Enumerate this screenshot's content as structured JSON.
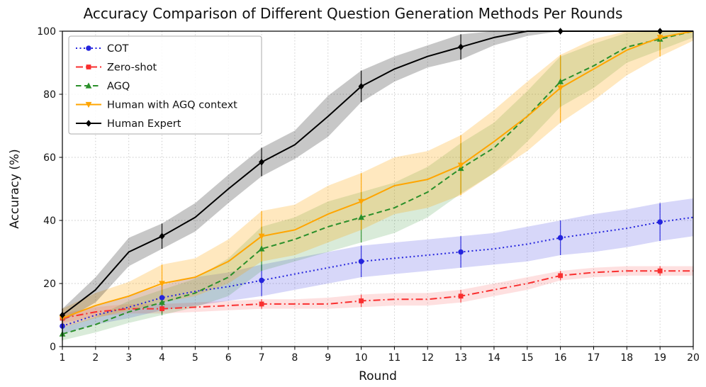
{
  "chart_data": {
    "type": "line",
    "title": "Accuracy Comparison of Different Question Generation Methods Per Rounds",
    "xlabel": "Round",
    "ylabel": "Accuracy (%)",
    "x": [
      1,
      2,
      3,
      4,
      5,
      6,
      7,
      8,
      9,
      10,
      11,
      12,
      13,
      14,
      15,
      16,
      17,
      18,
      19,
      20
    ],
    "xlim": [
      1,
      20
    ],
    "ylim": [
      0,
      100
    ],
    "yticks": [
      0,
      20,
      40,
      60,
      80,
      100
    ],
    "grid": true,
    "legend_position": "upper-left",
    "marker_every": 3,
    "series": [
      {
        "name": "COT",
        "color": "#2424dd",
        "band_opacity": 0.18,
        "line_style": "dotted",
        "marker": "circle",
        "values": [
          6.5,
          10,
          12.5,
          15.5,
          17.5,
          19,
          21,
          23,
          25,
          27,
          28,
          29,
          30,
          31,
          32.5,
          34.5,
          36,
          37.5,
          39.5,
          41
        ],
        "lower": [
          4,
          7,
          9,
          11.5,
          13,
          14.5,
          16,
          18,
          20,
          22,
          23,
          24,
          25,
          26,
          27,
          29,
          30,
          31.5,
          33.5,
          35
        ],
        "upper": [
          9,
          13,
          16,
          19.5,
          22,
          23.5,
          26,
          28,
          30,
          32,
          33,
          34,
          35,
          36,
          38,
          40,
          42,
          43.5,
          45.5,
          47
        ]
      },
      {
        "name": "Zero-shot",
        "color": "#f92f2f",
        "band_opacity": 0.15,
        "line_style": "dashdot",
        "marker": "square",
        "values": [
          9,
          11,
          12,
          12,
          12.5,
          13,
          13.5,
          13.5,
          13.5,
          14.5,
          15,
          15,
          16,
          18,
          20,
          22.5,
          23.5,
          24,
          24,
          24
        ],
        "lower": [
          7.5,
          9.5,
          10.5,
          10.5,
          11,
          11.5,
          12,
          12,
          12,
          12.5,
          13,
          13,
          14,
          16,
          18,
          21,
          22,
          22.5,
          22.5,
          22.5
        ],
        "upper": [
          10.5,
          12.5,
          13.5,
          13.5,
          14,
          14.5,
          15,
          15,
          15.5,
          16.5,
          17,
          17,
          18,
          20,
          22,
          24,
          25,
          25.5,
          25.5,
          25.5
        ]
      },
      {
        "name": "AGQ",
        "color": "#2a8f2a",
        "band_opacity": 0.18,
        "line_style": "dashed",
        "marker": "triangle-up",
        "values": [
          4,
          7,
          11,
          14,
          17,
          22,
          31,
          34,
          38,
          41,
          44,
          49,
          56.5,
          63,
          73,
          84,
          89,
          95,
          97.5,
          100
        ],
        "lower": [
          2,
          4.5,
          7.5,
          10,
          12.5,
          16,
          24,
          27,
          30,
          33,
          36,
          41,
          48.5,
          55,
          65,
          76,
          82,
          90,
          94,
          98
        ],
        "upper": [
          6,
          9.5,
          14.5,
          18,
          21.5,
          28,
          38,
          41,
          46,
          49,
          52,
          57,
          64.5,
          71,
          81,
          92,
          96,
          99.5,
          100,
          100
        ]
      },
      {
        "name": "Human with AGQ context",
        "color": "#ffa500",
        "band_opacity": 0.25,
        "line_style": "solid",
        "marker": "triangle-down",
        "values": [
          9,
          13,
          16,
          20,
          22,
          27,
          35,
          37,
          42,
          46,
          51,
          53,
          57.5,
          65,
          73,
          82,
          88,
          94,
          98,
          100
        ],
        "lower": [
          6,
          9,
          11.5,
          14,
          16,
          20,
          27,
          29,
          33,
          37,
          42,
          44,
          48,
          55,
          62,
          71,
          78,
          86,
          92,
          97
        ],
        "upper": [
          12,
          17,
          20.5,
          26,
          28,
          34,
          43,
          45,
          51,
          55,
          60,
          62,
          67,
          75,
          84,
          92.5,
          97.5,
          100,
          100,
          100
        ]
      },
      {
        "name": "Human Expert",
        "color": "#000000",
        "band_opacity": 0.22,
        "line_style": "solid",
        "marker": "diamond",
        "values": [
          10,
          18,
          30,
          35,
          41,
          50,
          58.5,
          64,
          73,
          82.5,
          88,
          92,
          95,
          98,
          100,
          100,
          100,
          100,
          100,
          100
        ],
        "lower": [
          8,
          14,
          25.5,
          31,
          36.5,
          45.5,
          54,
          59.5,
          66.5,
          77.5,
          84,
          88.5,
          91,
          95.5,
          98.5,
          100,
          100,
          100,
          100,
          100
        ],
        "upper": [
          12,
          22,
          34.5,
          39,
          45.5,
          54.5,
          63,
          68.5,
          79.5,
          87.5,
          92,
          95.5,
          99,
          100,
          100,
          100,
          100,
          100,
          100,
          100
        ]
      }
    ]
  }
}
